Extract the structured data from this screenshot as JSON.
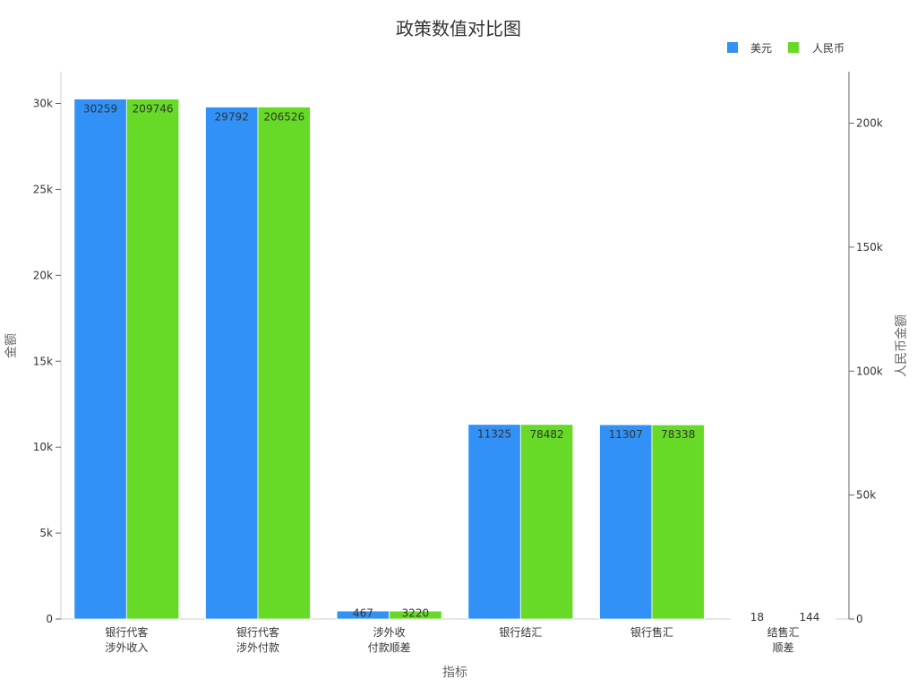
{
  "chart_data": {
    "type": "bar",
    "title": "政策数值对比图",
    "xlabel": "指标",
    "ylabel": "金额",
    "ylabel_right": "人民币金额",
    "categories": [
      [
        "银行代客",
        "涉外收入"
      ],
      [
        "银行代客",
        "涉外付款"
      ],
      [
        "涉外收",
        "付款顺差"
      ],
      [
        "银行结汇"
      ],
      [
        "银行售汇"
      ],
      [
        "结售汇",
        "顺差"
      ]
    ],
    "series": [
      {
        "name": "美元",
        "color": "#3191F7",
        "axis": "left",
        "values": [
          30259,
          29792,
          467,
          11325,
          11307,
          18
        ],
        "labels": [
          "30259",
          "29792",
          "467",
          "11325",
          "11307",
          "18"
        ]
      },
      {
        "name": "人民币",
        "color": "#66DA26",
        "axis": "right",
        "values": [
          209746,
          206526,
          3220,
          78482,
          78338,
          144
        ],
        "labels": [
          "209746",
          "206526",
          "3220",
          "78482",
          "78338",
          "144"
        ]
      }
    ],
    "ylim": [
      0,
      32000
    ],
    "ylim_right": [
      0,
      221000
    ],
    "yticks": [
      {
        "value": 0,
        "label": "0"
      },
      {
        "value": 5000,
        "label": "5k"
      },
      {
        "value": 10000,
        "label": "10k"
      },
      {
        "value": 15000,
        "label": "15k"
      },
      {
        "value": 20000,
        "label": "20k"
      },
      {
        "value": 25000,
        "label": "25k"
      },
      {
        "value": 30000,
        "label": "30k"
      }
    ],
    "yticks_right": [
      {
        "value": 0,
        "label": "0"
      },
      {
        "value": 50000,
        "label": "50k"
      },
      {
        "value": 100000,
        "label": "100k"
      },
      {
        "value": 150000,
        "label": "150k"
      },
      {
        "value": 200000,
        "label": "200k"
      }
    ],
    "grid": false,
    "legend": "top-right"
  }
}
